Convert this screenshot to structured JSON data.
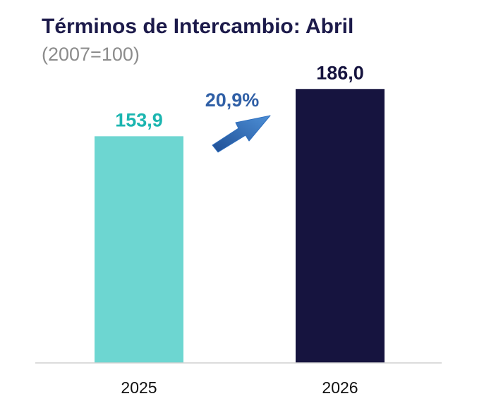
{
  "title": "Términos de Intercambio: Abril",
  "subtitle": "(2007=100)",
  "colors": {
    "title": "#1c1a4a",
    "subtitle": "#8c8c8c",
    "bar_2025": "#6dd6d1",
    "bar_2026": "#16143f",
    "label_2025": "#1bb5b0",
    "label_2026": "#16143f",
    "growth": "#2f5fa6",
    "arrow": "#2f6fbf",
    "axis": "#d0d0d0",
    "tick": "#111111"
  },
  "chart_data": {
    "type": "bar",
    "categories": [
      "2025",
      "2026"
    ],
    "values": [
      153.9,
      186.0
    ],
    "value_labels": [
      "153,9",
      "186,0"
    ],
    "ylim": [
      0,
      200
    ],
    "grid": false,
    "legend": "none",
    "annotations": [
      {
        "text": "20,9%",
        "from_category": "2025",
        "to_category": "2026",
        "shape": "up-right-arrow"
      }
    ]
  }
}
